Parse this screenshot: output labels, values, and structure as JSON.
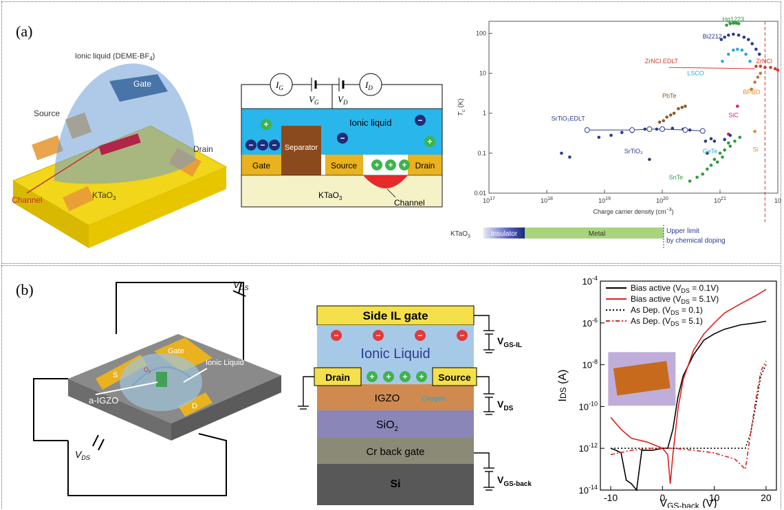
{
  "panels": {
    "a": {
      "label": "(a)",
      "device": {
        "ionic_liquid": "Ionic liquid (DEME-BF",
        "ionic_liquid_sub": "4",
        "ionic_liquid_close": ")",
        "gate": "Gate",
        "source": "Source",
        "drain": "Drain",
        "channel": "Channel",
        "substrate": "KTaO",
        "substrate_sub": "3"
      },
      "circuit": {
        "ig": "I",
        "ig_sub": "G",
        "id": "I",
        "id_sub": "D",
        "vg": "V",
        "vg_sub": "G",
        "vd": "V",
        "vd_sub": "D",
        "ionic_liquid": "Ionic liquid",
        "separator": "Separator",
        "gate": "Gate",
        "source": "Source",
        "drain": "Drain",
        "substrate": "KTaO",
        "substrate_sub": "3",
        "channel": "Channel",
        "plus": "+",
        "minus": "−"
      },
      "bar": {
        "material": "KTaO",
        "material_sub": "3",
        "insulator": "Insulator",
        "metal": "Metal",
        "upper_limit_1": "Upper limit",
        "upper_limit_2": "by chemical doping"
      }
    },
    "b": {
      "label": "(b)",
      "device": {
        "vgs": "V",
        "vgs_sub": "GS",
        "vds": "V",
        "vds_sub": "DS",
        "gate": "Gate",
        "s": "S",
        "d": "D",
        "igzo": "a-IGZO",
        "ionic_liquid": "Ionic Liquid",
        "o2": "O",
        "o2_sub": "2"
      },
      "stack": {
        "side_gate": "Side IL gate",
        "ionic_liquid": "Ionic Liquid",
        "drain": "Drain",
        "source": "Source",
        "igzo": "IGZO",
        "oxygen": "Oxygen",
        "sio2": "SiO",
        "sio2_sub": "2",
        "cr_gate": "Cr back gate",
        "si": "Si",
        "v_gs_il": "V",
        "v_gs_il_sub": "GS-IL",
        "v_ds": "V",
        "v_ds_sub": "DS",
        "v_gs_back": "V",
        "v_gs_back_sub": "GS-back",
        "plus": "+",
        "minus": "−"
      }
    }
  },
  "chart_data": [
    {
      "type": "scatter",
      "title": "",
      "xlabel": "Charge carrier density (cm",
      "xlabel_sup": "−3",
      "xlabel_close": ")",
      "ylabel": "T",
      "ylabel_sub": "c",
      "ylabel_unit": " (K)",
      "x_scale": "log",
      "y_scale": "log",
      "xlim": [
        1e+17,
        1e+22
      ],
      "ylim": [
        0.01,
        200
      ],
      "x_ticks": [
        {
          "v": 17,
          "label": "10",
          "sup": "17"
        },
        {
          "v": 18,
          "label": "10",
          "sup": "18"
        },
        {
          "v": 19,
          "label": "10",
          "sup": "19"
        },
        {
          "v": 20,
          "label": "10",
          "sup": "20"
        },
        {
          "v": 21,
          "label": "10",
          "sup": "21"
        },
        {
          "v": 22,
          "label": "10",
          "sup": ""
        }
      ],
      "y_ticks": [
        {
          "v": 100,
          "label": "100"
        },
        {
          "v": 10,
          "label": "10"
        },
        {
          "v": 1,
          "label": "1"
        },
        {
          "v": 0.1,
          "label": "0.1"
        },
        {
          "v": 0.01,
          "label": "0.01"
        }
      ],
      "series": [
        {
          "name": "Hg1223",
          "color": "#2e9a3c",
          "points": [
            [
              1.3e+21,
              160
            ],
            [
              1.5e+21,
              175
            ],
            [
              1.7e+21,
              180
            ],
            [
              1.9e+21,
              180
            ],
            [
              2.1e+21,
              175
            ]
          ]
        },
        {
          "name": "Bi2212",
          "color": "#2a3a8f",
          "points": [
            [
              1.05e+21,
              70
            ],
            [
              1.2e+21,
              80
            ],
            [
              1.4e+21,
              90
            ],
            [
              1.7e+21,
              95
            ],
            [
              2.1e+21,
              90
            ],
            [
              2.6e+21,
              80
            ],
            [
              3.1e+21,
              70
            ],
            [
              3.6e+21,
              55
            ],
            [
              4.2e+21,
              40
            ],
            [
              4.8e+21,
              30
            ]
          ]
        },
        {
          "name": "LSCO",
          "color": "#29a9e0",
          "points": [
            [
              1.1e+21,
              20
            ],
            [
              1.4e+21,
              30
            ],
            [
              1.7e+21,
              38
            ],
            [
              2e+21,
              40
            ],
            [
              2.4e+21,
              38
            ],
            [
              2.8e+21,
              30
            ],
            [
              3.3e+21,
              20
            ]
          ]
        },
        {
          "name": "ZrNCl",
          "color": "#d33a2c",
          "points": [
            [
              4.2e+21,
              15
            ],
            [
              5e+21,
              15
            ],
            [
              6e+21,
              14
            ],
            [
              7.5e+21,
              14
            ],
            [
              9e+21,
              13
            ],
            [
              1e+22,
              12
            ]
          ]
        },
        {
          "name": "BPBO",
          "color": "#b97a3a",
          "points": [
            [
              3.5e+21,
              4
            ],
            [
              4e+21,
              6
            ],
            [
              4.5e+21,
              8
            ],
            [
              5e+21,
              10
            ]
          ]
        },
        {
          "name": "PbTe",
          "color": "#8a5a2a",
          "points": [
            [
              9e+19,
              0.6
            ],
            [
              1.05e+20,
              0.65
            ],
            [
              1.2e+20,
              0.8
            ],
            [
              1.4e+20,
              0.9
            ],
            [
              1.6e+20,
              1.0
            ],
            [
              1.9e+20,
              1.3
            ],
            [
              2.2e+20,
              1.4
            ],
            [
              2.5e+20,
              1.5
            ]
          ]
        },
        {
          "name": "SiC",
          "color": "#d81b7a",
          "points": [
            [
              2e+21,
              1.5
            ],
            [
              1.4e+21,
              0.3
            ]
          ]
        },
        {
          "name": "GeTe",
          "color": "#2a3a8f",
          "points": [
            [
              5.6e+20,
              0.2
            ],
            [
              7e+20,
              0.23
            ],
            [
              8e+20,
              0.2
            ],
            [
              6e+20,
              0.1
            ],
            [
              1.2e+21,
              0.22
            ],
            [
              1.5e+21,
              0.28
            ]
          ]
        },
        {
          "name": "Si",
          "color": "#e6892c",
          "points": [
            [
              4e+21,
              0.35
            ]
          ]
        },
        {
          "name": "SnTe",
          "color": "#2e9a3c",
          "points": [
            [
              3e+20,
              0.02
            ],
            [
              4e+20,
              0.025
            ],
            [
              5e+20,
              0.03
            ],
            [
              6e+20,
              0.04
            ],
            [
              7e+20,
              0.05
            ],
            [
              8e+20,
              0.07
            ],
            [
              1e+21,
              0.1
            ],
            [
              1.2e+21,
              0.12
            ],
            [
              1.5e+21,
              0.15
            ],
            [
              1.8e+21,
              0.2
            ],
            [
              2.2e+21,
              0.25
            ],
            [
              1.1e+21,
              0.08
            ],
            [
              9e+20,
              0.06
            ],
            [
              1.4e+21,
              0.18
            ]
          ]
        },
        {
          "name": "SrTiO3",
          "color": "#2a3a8f",
          "points": [
            [
              1.8e+18,
              0.1
            ],
            [
              2.5e+18,
              0.08
            ],
            [
              8e+18,
              0.25
            ],
            [
              1.3e+19,
              0.28
            ],
            [
              2e+19,
              0.33
            ],
            [
              3e+19,
              0.35
            ],
            [
              5e+19,
              0.4
            ],
            [
              8e+19,
              0.4
            ],
            [
              1.5e+20,
              0.42
            ],
            [
              2.3e+20,
              0.4
            ],
            [
              3e+20,
              0.38
            ],
            [
              6e+19,
              0.07
            ]
          ]
        },
        {
          "name": "SrTiO3 EDLT",
          "color": "#2a3a8f",
          "line": true,
          "open": true,
          "points": [
            [
              5e+18,
              0.38
            ],
            [
              3e+19,
              0.38
            ],
            [
              6e+19,
              0.4
            ],
            [
              1e+20,
              0.4
            ],
            [
              2.5e+20,
              0.38
            ],
            [
              5e+20,
              0.36
            ]
          ]
        }
      ],
      "labels": [
        {
          "text": "Hg1223",
          "x": 1.1e+21,
          "y": 200,
          "color": "#2e9a3c"
        },
        {
          "text": "Bi2212",
          "x": 5e+20,
          "y": 75,
          "color": "#2a3a8f"
        },
        {
          "text": "ZrNCl EDLT",
          "x": 5e+19,
          "y": 18,
          "color": "#d33a2c"
        },
        {
          "text": "ZrNCl",
          "x": 4.2e+21,
          "y": 18,
          "color": "#d33a2c"
        },
        {
          "text": "LSCO",
          "x": 2.7e+20,
          "y": 9,
          "color": "#29a9e0"
        },
        {
          "text": "BPBO",
          "x": 2.5e+21,
          "y": 3,
          "color": "#e6892c"
        },
        {
          "text": "PbTe",
          "x": 1e+20,
          "y": 2.4,
          "color": "#8a5a2a"
        },
        {
          "text": "SiC",
          "x": 1.4e+21,
          "y": 0.8,
          "color": "#d81b7a"
        },
        {
          "text": "SrTiO₃EDLT",
          "x": 1.2e+18,
          "y": 0.65,
          "color": "#2a3a8f"
        },
        {
          "text": "SrTiO₃",
          "x": 2.2e+19,
          "y": 0.1,
          "color": "#2a3a8f"
        },
        {
          "text": "GeTe",
          "x": 5e+20,
          "y": 0.1,
          "color": "#29a9e0"
        },
        {
          "text": "Si",
          "x": 3.7e+21,
          "y": 0.11,
          "color": "#e6892c"
        },
        {
          "text": "SnTe",
          "x": 1.3e+20,
          "y": 0.022,
          "color": "#2e9a3c"
        }
      ],
      "upper_limit_x": 6e+21
    },
    {
      "type": "line",
      "title": "",
      "xlabel": "V",
      "xlabel_sub": "GS-back",
      "xlabel_unit": " (V)",
      "ylabel": "I",
      "ylabel_sub": "DS",
      "ylabel_unit": " (A)",
      "y_scale": "log",
      "xlim": [
        -12,
        22
      ],
      "ylim": [
        1e-14,
        0.0001
      ],
      "x_ticks": [
        "-10",
        "0",
        "10",
        "20"
      ],
      "y_ticks": [
        {
          "label": "10",
          "sup": "-4"
        },
        {
          "label": "10",
          "sup": "-6"
        },
        {
          "label": "10",
          "sup": "-8"
        },
        {
          "label": "10",
          "sup": "-10"
        },
        {
          "label": "10",
          "sup": "-12"
        },
        {
          "label": "10",
          "sup": "-14"
        }
      ],
      "series": [
        {
          "name": "Bias active (V",
          "name_sub": "DS",
          "name_close": " = 0.1V)",
          "color": "#000000",
          "style": "solid",
          "points": [
            [
              -10,
              1e-12
            ],
            [
              -9,
              8e-13
            ],
            [
              -8,
              6e-13
            ],
            [
              -7,
              3e-14
            ],
            [
              -6,
              2e-14
            ],
            [
              -5,
              1e-14
            ],
            [
              -4,
              8e-13
            ],
            [
              -2,
              8e-13
            ],
            [
              0,
              1e-12
            ],
            [
              1,
              1e-12
            ],
            [
              2,
              8e-12
            ],
            [
              3,
              3e-10
            ],
            [
              4,
              3e-09
            ],
            [
              6,
              3e-08
            ],
            [
              8,
              1.5e-07
            ],
            [
              10,
              3e-07
            ],
            [
              12,
              5e-07
            ],
            [
              15,
              8e-07
            ],
            [
              18,
              1e-06
            ],
            [
              20,
              1.2e-06
            ]
          ]
        },
        {
          "name": "Bias active (V",
          "name_sub": "DS",
          "name_close": " = 5.1V)",
          "color": "#e01f1f",
          "style": "solid",
          "points": [
            [
              -10,
              3e-11
            ],
            [
              -8,
              8e-12
            ],
            [
              -6,
              3e-12
            ],
            [
              -3,
              2e-12
            ],
            [
              0,
              1e-12
            ],
            [
              1,
              5e-13
            ],
            [
              1.5,
              2e-14
            ],
            [
              2,
              5e-13
            ],
            [
              3,
              8e-11
            ],
            [
              4,
              2e-09
            ],
            [
              6,
              5e-08
            ],
            [
              8,
              3e-07
            ],
            [
              10,
              1e-06
            ],
            [
              12,
              3e-06
            ],
            [
              15,
              8e-06
            ],
            [
              18,
              2e-05
            ],
            [
              20,
              4e-05
            ]
          ]
        },
        {
          "name": "As Dep. (V",
          "name_sub": "DS",
          "name_close": " = 0.1)",
          "color": "#000000",
          "style": "dotted",
          "points": [
            [
              -10,
              1e-12
            ],
            [
              -6,
              1e-12
            ],
            [
              -2,
              1e-12
            ],
            [
              2,
              1e-12
            ],
            [
              6,
              1e-12
            ],
            [
              10,
              1e-12
            ],
            [
              14,
              1e-12
            ],
            [
              16,
              1e-12
            ],
            [
              17,
              5e-12
            ],
            [
              18,
              1e-10
            ],
            [
              19,
              3e-09
            ],
            [
              20,
              1e-08
            ]
          ]
        },
        {
          "name": "As Dep. (V",
          "name_sub": "DS",
          "name_close": " = 5.1)",
          "color": "#e01f1f",
          "style": "dashdot",
          "points": [
            [
              -10,
              5e-13
            ],
            [
              -6,
              8e-13
            ],
            [
              -2,
              1e-12
            ],
            [
              2,
              1e-12
            ],
            [
              6,
              8e-13
            ],
            [
              10,
              6e-13
            ],
            [
              14,
              3e-13
            ],
            [
              16,
              1e-13
            ],
            [
              17,
              5e-12
            ],
            [
              18,
              2e-10
            ],
            [
              19,
              5e-09
            ],
            [
              20,
              1.5e-08
            ]
          ]
        }
      ]
    }
  ],
  "colors": {
    "gold": "#e9b21e",
    "ionic_blue": "#29b6ea",
    "separator_brown": "#8b4a1e",
    "substrate_cream": "#f5f2c8",
    "channel_red": "#e52a2a",
    "ion_green": "#3cb44b",
    "ion_navy": "#1f2c7a"
  }
}
